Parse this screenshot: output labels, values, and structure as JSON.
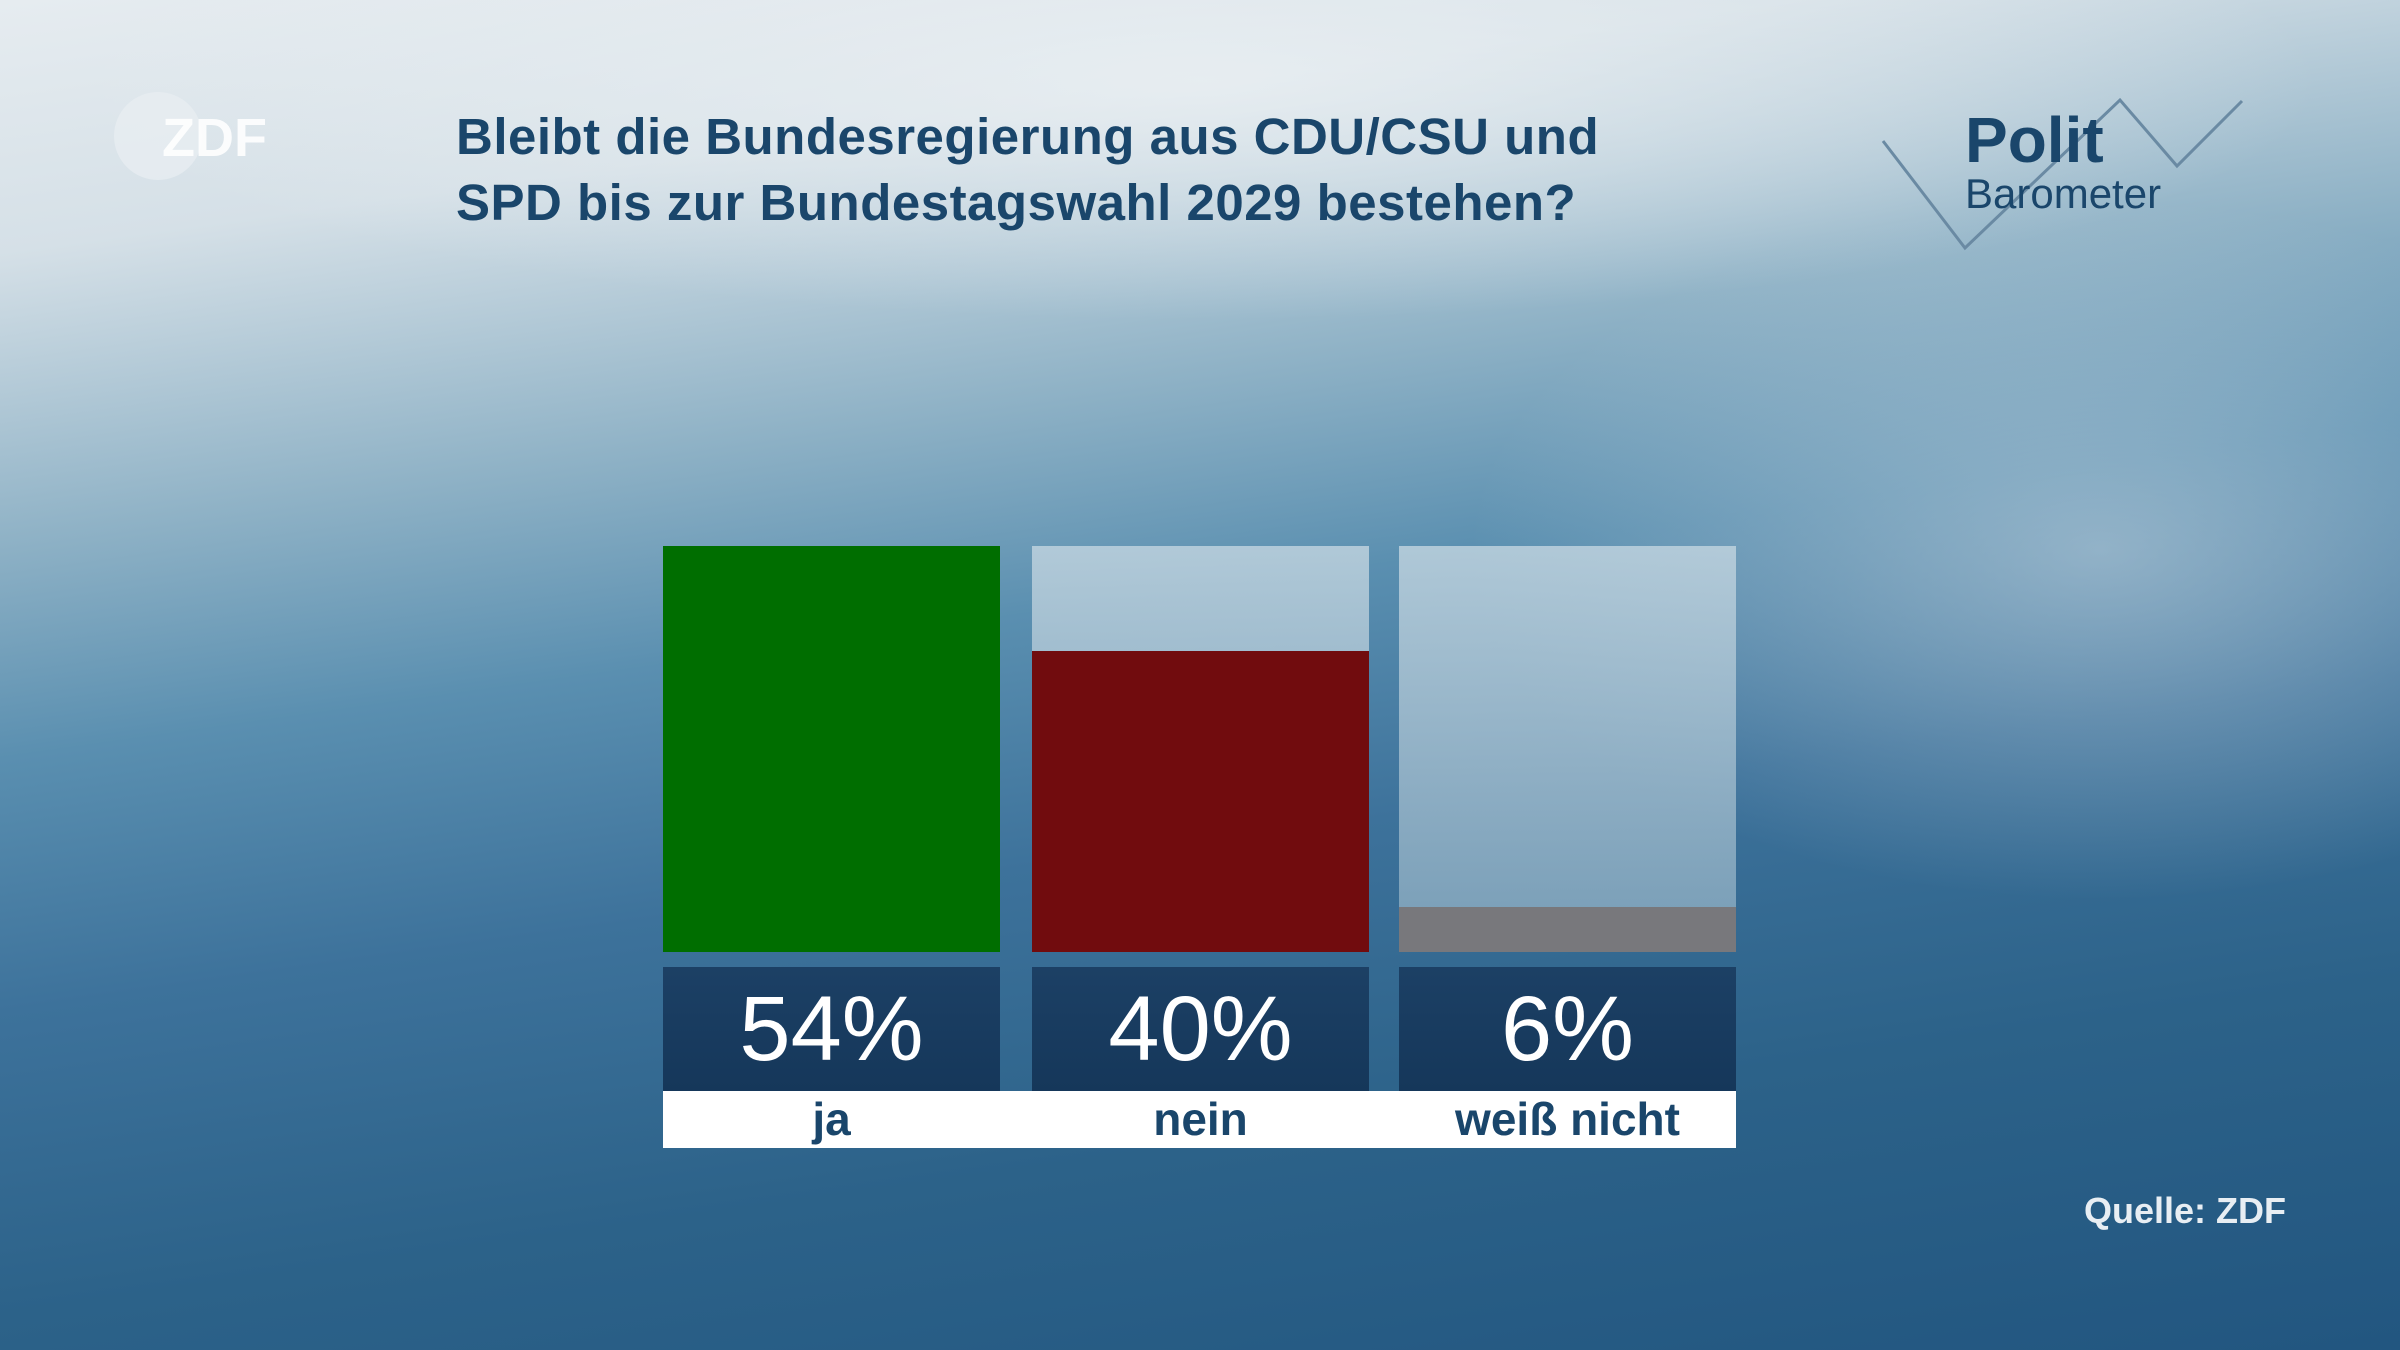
{
  "title_lines": [
    "Bleibt die Bundesregierung aus CDU/CSU und",
    "SPD bis zur Bundestagswahl 2029 bestehen?"
  ],
  "logo_zdf": "ZDF",
  "logo_polit": {
    "line1": "Polit",
    "line2": "Barometer"
  },
  "source": "Quelle: ZDF",
  "chart_data": {
    "type": "bar",
    "title": "Bleibt die Bundesregierung aus CDU/CSU und SPD bis zur Bundestagswahl 2029 bestehen?",
    "categories": [
      "ja",
      "nein",
      "weiß nicht"
    ],
    "values": [
      54,
      40,
      6
    ],
    "value_labels": [
      "54%",
      "40%",
      "6%"
    ],
    "unit": "%",
    "ylim": [
      0,
      54
    ],
    "colors": [
      "#006e00",
      "#710c0e",
      "#78787c"
    ],
    "grid": false
  }
}
